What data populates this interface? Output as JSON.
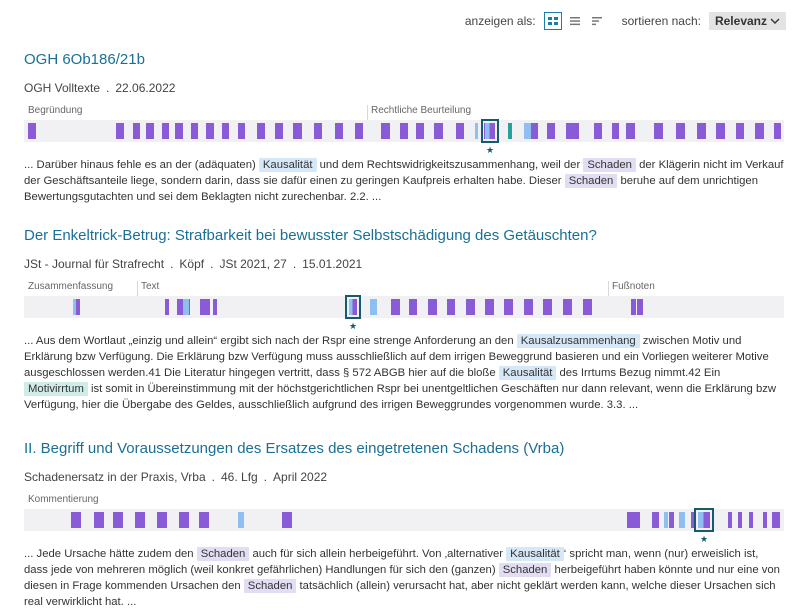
{
  "toolbar": {
    "view_label": "anzeigen als:",
    "sort_label": "sortieren nach:",
    "sort_value": "Relevanz",
    "view_icons": [
      "grid-icon",
      "list-icon",
      "compact-list-icon"
    ]
  },
  "colors": {
    "title": "#1a6f96",
    "hit_purple": "#8a5bd6",
    "hit_blue": "#8ebff0",
    "hit_teal": "#2aa198",
    "focus": "#165a72"
  },
  "results": [
    {
      "title": "OGH 6Ob186/21b",
      "meta": [
        "OGH Volltexte",
        "22.06.2022"
      ],
      "sections": [
        "Begründung",
        "Rechtliche Beurteilung"
      ],
      "snippet": [
        {
          "t": "... Darüber hinaus fehle es an der (adäquaten) "
        },
        {
          "t": "Kausalität",
          "h": "k"
        },
        {
          "t": " und dem Rechtswidrigkeitszusammenhang, weil der "
        },
        {
          "t": "Schaden",
          "h": "s"
        },
        {
          "t": " der Klägerin nicht im Verkauf der Geschäftsanteile liege, sondern darin, dass sie dafür einen zu geringen Kaufpreis erhalten habe. Dieser "
        },
        {
          "t": "Schaden",
          "h": "s"
        },
        {
          "t": " beruhe auf dem unrichtigen Bewertungsgutachten und sei dem Beklagten nicht zurechenbar. 2.2. ..."
        }
      ]
    },
    {
      "title": "Der Enkeltrick-Betrug: Strafbarkeit bei bewusster Selbstschädigung des Getäuschten?",
      "meta": [
        "JSt - Journal für Strafrecht",
        "Köpf",
        "JSt 2021, 27",
        "15.01.2021"
      ],
      "sections": [
        "Zusammenfassung",
        "Text",
        "Fußnoten"
      ],
      "snippet": [
        {
          "t": "... Aus dem Wortlaut „einzig und allein“ ergibt sich nach der Rspr eine strenge Anforderung an den "
        },
        {
          "t": "Kausalzusammenhang",
          "h": "k"
        },
        {
          "t": " zwischen Motiv und Erklärung bzw Verfügung. Die Erklärung bzw Verfügung muss ausschließlich auf dem irrigen Beweggrund basieren und ein Vorliegen weiterer Motive ausgeschlossen werden.41 Die Literatur hingegen vertritt, dass § 572 ABGB hier auf die bloße "
        },
        {
          "t": "Kausalität",
          "h": "k"
        },
        {
          "t": " des Irrtums Bezug nimmt.42 Ein "
        },
        {
          "t": "Motivirrtum",
          "h": "m"
        },
        {
          "t": " ist somit in Übereinstimmung mit der höchstgerichtlichen Rspr bei unentgeltlichen Geschäften nur dann relevant, wenn die Erklärung bzw Verfügung, hier die Übergabe des Geldes, ausschließlich aufgrund des irrigen Beweggrundes vorgenommen wurde. 3.3. ..."
        }
      ]
    },
    {
      "title": "II. Begriff und Voraussetzungen des Ersatzes des eingetretenen Schadens (Vrba)",
      "meta": [
        "Schadenersatz in der Praxis, Vrba",
        "46. Lfg",
        "April 2022"
      ],
      "sections": [
        "Kommentierung"
      ],
      "snippet": [
        {
          "t": "... Jede Ursache hätte zudem den "
        },
        {
          "t": "Schaden",
          "h": "s"
        },
        {
          "t": " auch für sich allein herbeigeführt. Von ‚alternativer "
        },
        {
          "t": "Kausalität",
          "h": "k"
        },
        {
          "t": "‘ spricht man, wenn (nur) erweislich ist, dass jede von mehreren möglich (weil konkret gefährlichen) Handlungen für sich den (ganzen) "
        },
        {
          "t": "Schaden",
          "h": "s"
        },
        {
          "t": " herbeigeführt haben könnte und nur eine von diesen in Frage kommenden Ursachen den "
        },
        {
          "t": "Schaden",
          "h": "s"
        },
        {
          "t": " tatsächlich (allein) verursacht hat, aber nicht geklärt werden kann, welche dieser Ursachen sich real verwirklicht hat. ..."
        }
      ]
    }
  ],
  "hitmaps": [
    {
      "dividers": [],
      "bars": [
        [
          "p",
          4,
          8
        ],
        [
          "p",
          92,
          8
        ],
        [
          "p",
          109,
          7
        ],
        [
          "p",
          122,
          8
        ],
        [
          "p",
          138,
          7
        ],
        [
          "p",
          151,
          8
        ],
        [
          "p",
          167,
          7
        ],
        [
          "p",
          182,
          8
        ],
        [
          "p",
          198,
          7
        ],
        [
          "p",
          214,
          7
        ],
        [
          "p",
          233,
          8
        ],
        [
          "p",
          251,
          8
        ],
        [
          "p",
          269,
          9
        ],
        [
          "p",
          290,
          8
        ],
        [
          "p",
          311,
          8
        ],
        [
          "p",
          331,
          8
        ],
        [
          "p",
          357,
          9
        ],
        [
          "p",
          376,
          8
        ],
        [
          "p",
          392,
          8
        ],
        [
          "p",
          410,
          9
        ],
        [
          "p",
          432,
          8
        ],
        [
          "b",
          451,
          3
        ],
        [
          "p",
          460,
          9
        ],
        [
          "t",
          484,
          4
        ],
        [
          "b",
          500,
          7
        ],
        [
          "p",
          507,
          7
        ],
        [
          "p",
          523,
          8
        ],
        [
          "p",
          542,
          13
        ],
        [
          "p",
          570,
          8
        ],
        [
          "p",
          588,
          7
        ],
        [
          "p",
          602,
          9
        ],
        [
          "p",
          630,
          9
        ],
        [
          "p",
          652,
          9
        ],
        [
          "p",
          673,
          9
        ],
        [
          "p",
          692,
          9
        ],
        [
          "p",
          712,
          8
        ],
        [
          "p",
          731,
          9
        ],
        [
          "p",
          750,
          7
        ]
      ],
      "focus": {
        "x": 457,
        "w": 18,
        "mix": true
      }
    },
    {
      "bars": [
        [
          "mix",
          49,
          7
        ],
        [
          "p",
          141,
          4
        ],
        [
          "p",
          153,
          7
        ],
        [
          "p",
          160,
          6
        ],
        [
          "p",
          176,
          10
        ],
        [
          "b",
          159,
          6
        ],
        [
          "p",
          189,
          4
        ],
        [
          "b",
          346,
          7
        ],
        [
          "p",
          367,
          9
        ],
        [
          "p",
          385,
          8
        ],
        [
          "p",
          404,
          9
        ],
        [
          "p",
          423,
          8
        ],
        [
          "p",
          442,
          9
        ],
        [
          "p",
          461,
          9
        ],
        [
          "p",
          480,
          9
        ],
        [
          "p",
          500,
          9
        ],
        [
          "p",
          519,
          9
        ],
        [
          "p",
          539,
          9
        ],
        [
          "p",
          559,
          9
        ],
        [
          "p",
          607,
          5
        ],
        [
          "p",
          613,
          6
        ]
      ],
      "focus": {
        "x": 321,
        "w": 16,
        "mix": true
      }
    },
    {
      "bars": [
        [
          "p",
          47,
          10
        ],
        [
          "p",
          70,
          10
        ],
        [
          "p",
          89,
          10
        ],
        [
          "p",
          111,
          10
        ],
        [
          "p",
          133,
          10
        ],
        [
          "p",
          155,
          10
        ],
        [
          "p",
          175,
          10
        ],
        [
          "b",
          214,
          6
        ],
        [
          "p",
          258,
          10
        ],
        [
          "p",
          603,
          13
        ],
        [
          "p",
          628,
          7
        ],
        [
          "b",
          640,
          4
        ],
        [
          "p",
          645,
          5
        ],
        [
          "b",
          655,
          6
        ],
        [
          "p",
          667,
          4
        ],
        [
          "p",
          704,
          4
        ],
        [
          "p",
          714,
          4
        ],
        [
          "p",
          725,
          4
        ],
        [
          "p",
          739,
          4
        ],
        [
          "p",
          748,
          8
        ]
      ],
      "focus": {
        "x": 670,
        "w": 20,
        "mix": true
      }
    }
  ]
}
